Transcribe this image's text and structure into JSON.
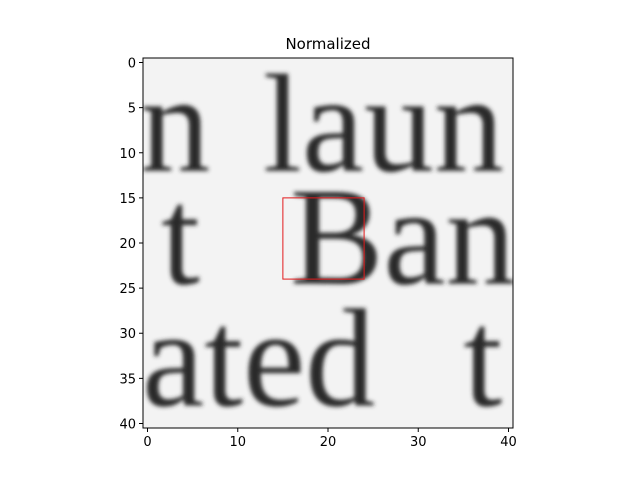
{
  "chart_data": {
    "type": "image",
    "title": "Normalized",
    "xlim": [
      -0.5,
      40.5
    ],
    "ylim": [
      40.5,
      -0.5
    ],
    "xticks": [
      0,
      10,
      20,
      30,
      40
    ],
    "yticks": [
      0,
      5,
      10,
      15,
      20,
      25,
      30,
      35,
      40
    ],
    "image_text": [
      {
        "row": 12,
        "words": [
          {
            "x": -0.8,
            "text": "n"
          },
          {
            "x": 12.8,
            "text": "laun"
          }
        ]
      },
      {
        "row": 24.5,
        "words": [
          {
            "x": 1.5,
            "text": "t"
          },
          {
            "x": 15.8,
            "text": "Ban"
          }
        ]
      },
      {
        "row": 38,
        "words": [
          {
            "x": -0.6,
            "text": "ated"
          },
          {
            "x": 35,
            "text": "t"
          }
        ]
      }
    ],
    "box": {
      "x": [
        15,
        24
      ],
      "y": [
        15,
        24
      ],
      "color": "#e31a1c"
    }
  }
}
